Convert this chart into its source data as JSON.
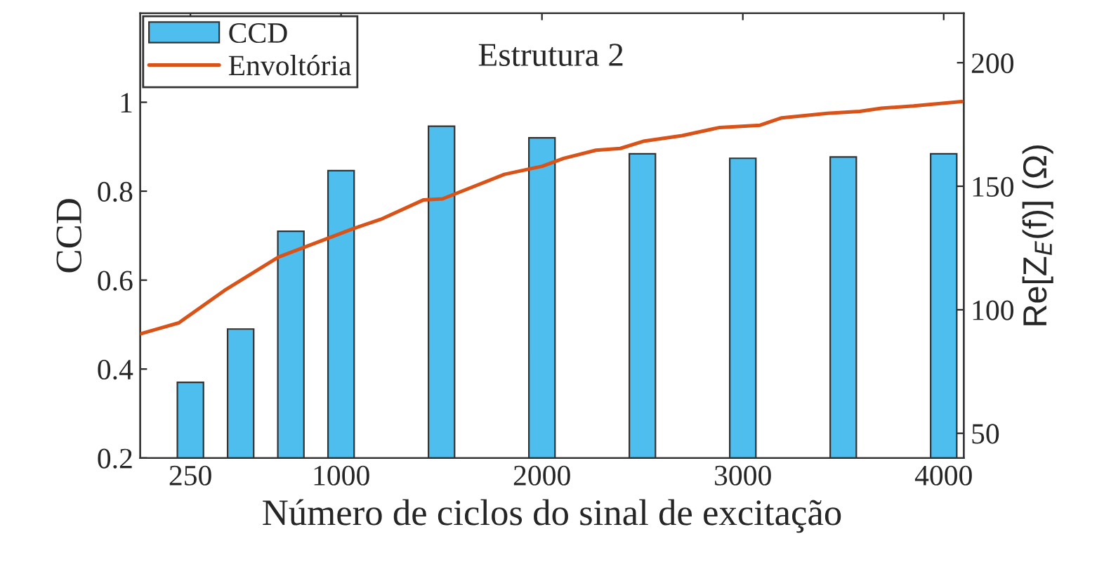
{
  "chart_data": {
    "type": "bar",
    "title": "Estrutura 2",
    "xlabel": "Número de ciclos do sinal de excitação",
    "ylabel": "CCD",
    "y2label": "Re[Z$_{E}$(f)] (Ω)",
    "x": [
      250,
      500,
      750,
      1000,
      1500,
      2000,
      2500,
      3000,
      3500,
      4000
    ],
    "series": [
      {
        "name": "CCD",
        "color": "#4dbeee",
        "values": [
          0.37,
          0.49,
          0.71,
          0.846,
          0.946,
          0.92,
          0.884,
          0.874,
          0.877,
          0.884
        ]
      },
      {
        "name": "Envoltória",
        "type": "line",
        "axis": "y2",
        "color": "#d95319",
        "x": [
          4,
          98,
          192,
          419,
          688,
          1063,
          1197,
          1411,
          1505,
          1813,
          2001,
          2108,
          2269,
          2390,
          2510,
          2698,
          2885,
          3086,
          3194,
          3422,
          3582,
          3690,
          3850,
          4090
        ],
        "values": [
          90.3,
          92.5,
          94.7,
          107.8,
          121.3,
          132.9,
          136.6,
          144.5,
          144.9,
          154.8,
          158.1,
          161.3,
          164.6,
          165.3,
          168.3,
          170.5,
          173.8,
          174.7,
          177.7,
          179.5,
          180.3,
          181.6,
          182.5,
          184.3
        ]
      }
    ],
    "xlim": [
      0,
      4100
    ],
    "xticks": [
      250,
      1000,
      2000,
      3000,
      4000
    ],
    "ylim": [
      0.2,
      1.2
    ],
    "yticks": [
      0.2,
      0.4,
      0.6,
      0.8,
      1
    ],
    "y2lim": [
      40,
      220
    ],
    "y2ticks": [
      50,
      100,
      150,
      200
    ],
    "legend": "top left",
    "grid": false
  }
}
